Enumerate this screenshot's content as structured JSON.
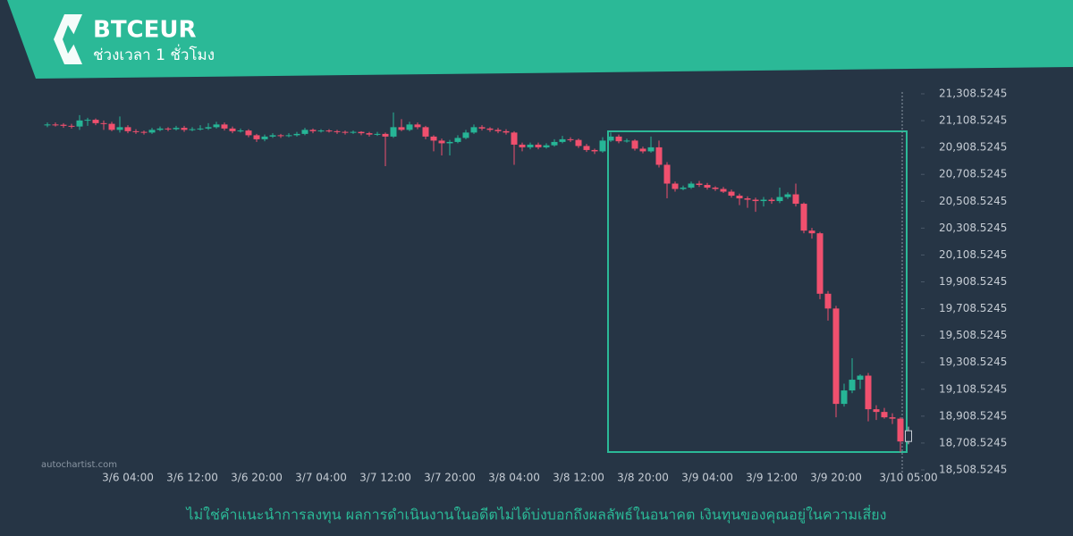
{
  "chart_data": {
    "type": "candlestick",
    "title": "BTCEUR",
    "subtitle": "ช่วงเวลา 1 ชั่วโมง",
    "disclaimer": "ไม่ใช่คำแนะนำการลงทุน ผลการดำเนินงานในอดีตไม่ได้บ่งบอกถึงผลลัพธ์ในอนาคต เงินทุนของคุณอยู่ในความเสี่ยง",
    "watermark": "autochartist.com",
    "up_color": "#26b596",
    "down_color": "#f0506e",
    "x": [
      "3/5 18:00",
      "3/5 19:00",
      "3/5 20:00",
      "3/5 21:00",
      "3/5 22:00",
      "3/5 23:00",
      "3/6 00:00",
      "3/6 01:00",
      "3/6 02:00",
      "3/6 03:00",
      "3/6 04:00",
      "3/6 05:00",
      "3/6 06:00",
      "3/6 07:00",
      "3/6 08:00",
      "3/6 09:00",
      "3/6 10:00",
      "3/6 11:00",
      "3/6 12:00",
      "3/6 13:00",
      "3/6 14:00",
      "3/6 15:00",
      "3/6 16:00",
      "3/6 17:00",
      "3/6 18:00",
      "3/6 19:00",
      "3/6 20:00",
      "3/6 21:00",
      "3/6 22:00",
      "3/6 23:00",
      "3/7 00:00",
      "3/7 01:00",
      "3/7 02:00",
      "3/7 03:00",
      "3/7 04:00",
      "3/7 05:00",
      "3/7 06:00",
      "3/7 07:00",
      "3/7 08:00",
      "3/7 09:00",
      "3/7 10:00",
      "3/7 11:00",
      "3/7 12:00",
      "3/7 13:00",
      "3/7 14:00",
      "3/7 15:00",
      "3/7 16:00",
      "3/7 17:00",
      "3/7 18:00",
      "3/7 19:00",
      "3/7 20:00",
      "3/7 21:00",
      "3/7 22:00",
      "3/7 23:00",
      "3/8 00:00",
      "3/8 01:00",
      "3/8 02:00",
      "3/8 03:00",
      "3/8 04:00",
      "3/8 05:00",
      "3/8 06:00",
      "3/8 07:00",
      "3/8 08:00",
      "3/8 09:00",
      "3/8 10:00",
      "3/8 11:00",
      "3/8 12:00",
      "3/8 13:00",
      "3/8 14:00",
      "3/8 15:00",
      "3/8 16:00",
      "3/8 17:00",
      "3/8 18:00",
      "3/8 19:00",
      "3/8 20:00",
      "3/8 21:00",
      "3/8 22:00",
      "3/8 23:00",
      "3/9 00:00",
      "3/9 01:00",
      "3/9 02:00",
      "3/9 03:00",
      "3/9 04:00",
      "3/9 05:00",
      "3/9 06:00",
      "3/9 07:00",
      "3/9 08:00",
      "3/9 09:00",
      "3/9 10:00",
      "3/9 11:00",
      "3/9 12:00",
      "3/9 13:00",
      "3/9 14:00",
      "3/9 15:00",
      "3/9 16:00",
      "3/9 17:00",
      "3/9 18:00",
      "3/9 19:00",
      "3/9 20:00",
      "3/9 21:00",
      "3/9 22:00",
      "3/9 23:00",
      "3/10 00:00",
      "3/10 01:00",
      "3/10 02:00",
      "3/10 03:00",
      "3/10 04:00",
      "3/10 05:00"
    ],
    "candles": [
      [
        21075,
        21095,
        21060,
        21080
      ],
      [
        21080,
        21095,
        21065,
        21078
      ],
      [
        21078,
        21090,
        21055,
        21070
      ],
      [
        21070,
        21085,
        21050,
        21065
      ],
      [
        21065,
        21150,
        21040,
        21110
      ],
      [
        21110,
        21130,
        21070,
        21115
      ],
      [
        21115,
        21125,
        21075,
        21090
      ],
      [
        21090,
        21110,
        21040,
        21085
      ],
      [
        21085,
        21100,
        21030,
        21040
      ],
      [
        21040,
        21140,
        21020,
        21060
      ],
      [
        21060,
        21075,
        21015,
        21030
      ],
      [
        21030,
        21045,
        21010,
        21025
      ],
      [
        21025,
        21035,
        21005,
        21020
      ],
      [
        21020,
        21055,
        21010,
        21040
      ],
      [
        21040,
        21065,
        21030,
        21050
      ],
      [
        21050,
        21060,
        21030,
        21045
      ],
      [
        21045,
        21070,
        21035,
        21055
      ],
      [
        21055,
        21070,
        21025,
        21040
      ],
      [
        21040,
        21060,
        21030,
        21045
      ],
      [
        21045,
        21075,
        21035,
        21050
      ],
      [
        21050,
        21090,
        21040,
        21060
      ],
      [
        21060,
        21100,
        21050,
        21080
      ],
      [
        21080,
        21095,
        21035,
        21050
      ],
      [
        21050,
        21065,
        21015,
        21030
      ],
      [
        21030,
        21050,
        21020,
        21035
      ],
      [
        21035,
        21045,
        20985,
        21000
      ],
      [
        21000,
        21010,
        20950,
        20970
      ],
      [
        20970,
        21005,
        20955,
        20990
      ],
      [
        20990,
        21015,
        20980,
        21000
      ],
      [
        21000,
        21010,
        20980,
        20995
      ],
      [
        20995,
        21015,
        20985,
        21000
      ],
      [
        21000,
        21025,
        20990,
        21010
      ],
      [
        21010,
        21055,
        21000,
        21040
      ],
      [
        21040,
        21050,
        21015,
        21030
      ],
      [
        21030,
        21045,
        21020,
        21035
      ],
      [
        21035,
        21045,
        21020,
        21030
      ],
      [
        21030,
        21040,
        21010,
        21025
      ],
      [
        21025,
        21035,
        21005,
        21020
      ],
      [
        21020,
        21035,
        21010,
        21025
      ],
      [
        21025,
        21030,
        21000,
        21015
      ],
      [
        21015,
        21025,
        20990,
        21005
      ],
      [
        21005,
        21025,
        20995,
        21010
      ],
      [
        21010,
        21020,
        20770,
        20990
      ],
      [
        20990,
        21170,
        20980,
        21060
      ],
      [
        21060,
        21120,
        21030,
        21040
      ],
      [
        21040,
        21100,
        21030,
        21080
      ],
      [
        21080,
        21095,
        21045,
        21060
      ],
      [
        21060,
        21070,
        20970,
        20990
      ],
      [
        20990,
        21000,
        20880,
        20960
      ],
      [
        20960,
        20975,
        20850,
        20940
      ],
      [
        20940,
        20965,
        20850,
        20950
      ],
      [
        20950,
        21000,
        20940,
        20980
      ],
      [
        20980,
        21040,
        20970,
        21020
      ],
      [
        21020,
        21080,
        21010,
        21060
      ],
      [
        21060,
        21075,
        21035,
        21050
      ],
      [
        21050,
        21060,
        21025,
        21040
      ],
      [
        21040,
        21055,
        21015,
        21030
      ],
      [
        21030,
        21045,
        21005,
        21020
      ],
      [
        21020,
        21030,
        20780,
        20930
      ],
      [
        20930,
        20945,
        20880,
        20910
      ],
      [
        20910,
        20945,
        20895,
        20930
      ],
      [
        20930,
        20945,
        20895,
        20910
      ],
      [
        20910,
        20940,
        20900,
        20925
      ],
      [
        20925,
        20970,
        20915,
        20950
      ],
      [
        20950,
        20995,
        20940,
        20970
      ],
      [
        20970,
        20985,
        20950,
        20965
      ],
      [
        20965,
        20975,
        20905,
        20920
      ],
      [
        20920,
        20935,
        20875,
        20890
      ],
      [
        20890,
        20900,
        20860,
        20880
      ],
      [
        20880,
        20985,
        20870,
        20960
      ],
      [
        20960,
        21020,
        20950,
        20990
      ],
      [
        20990,
        21005,
        20940,
        20955
      ],
      [
        20955,
        20975,
        20945,
        20960
      ],
      [
        20960,
        20970,
        20885,
        20900
      ],
      [
        20900,
        20915,
        20865,
        20880
      ],
      [
        20880,
        20990,
        20870,
        20910
      ],
      [
        20910,
        20960,
        20760,
        20780
      ],
      [
        20780,
        20800,
        20530,
        20640
      ],
      [
        20640,
        20655,
        20580,
        20600
      ],
      [
        20600,
        20625,
        20590,
        20610
      ],
      [
        20610,
        20655,
        20600,
        20640
      ],
      [
        20640,
        20660,
        20615,
        20630
      ],
      [
        20630,
        20645,
        20595,
        20610
      ],
      [
        20610,
        20620,
        20585,
        20600
      ],
      [
        20600,
        20615,
        20570,
        20580
      ],
      [
        20580,
        20595,
        20535,
        20550
      ],
      [
        20550,
        20565,
        20480,
        20530
      ],
      [
        20530,
        20545,
        20460,
        20520
      ],
      [
        20520,
        20535,
        20430,
        20510
      ],
      [
        20510,
        20540,
        20470,
        20520
      ],
      [
        20520,
        20535,
        20490,
        20510
      ],
      [
        20510,
        20610,
        20495,
        20540
      ],
      [
        20540,
        20575,
        20525,
        20560
      ],
      [
        20560,
        20640,
        20470,
        20490
      ],
      [
        20490,
        20500,
        20270,
        20290
      ],
      [
        20290,
        20310,
        20230,
        20270
      ],
      [
        20270,
        20280,
        19780,
        19820
      ],
      [
        19820,
        19840,
        19620,
        19710
      ],
      [
        19710,
        19730,
        18900,
        19000
      ],
      [
        19000,
        19150,
        18980,
        19100
      ],
      [
        19100,
        19340,
        19080,
        19180
      ],
      [
        19180,
        19220,
        19110,
        19210
      ],
      [
        19210,
        19230,
        18870,
        18960
      ],
      [
        18960,
        18990,
        18880,
        18940
      ],
      [
        18940,
        18970,
        18890,
        18900
      ],
      [
        18900,
        18930,
        18850,
        18890
      ],
      [
        18890,
        18900,
        18640,
        18720
      ],
      [
        18720,
        18830,
        18700,
        18800
      ]
    ],
    "ylim": [
      18481.9,
      21335.1
    ],
    "yticks": [
      {
        "value": 21308.5245,
        "label": "21,308.5245"
      },
      {
        "value": 21108.5245,
        "label": "21,108.5245"
      },
      {
        "value": 20908.5245,
        "label": "20,908.5245"
      },
      {
        "value": 20708.5245,
        "label": "20,708.5245"
      },
      {
        "value": 20508.5245,
        "label": "20,508.5245"
      },
      {
        "value": 20308.5245,
        "label": "20,308.5245"
      },
      {
        "value": 20108.5245,
        "label": "20,108.5245"
      },
      {
        "value": 19908.5245,
        "label": "19,908.5245"
      },
      {
        "value": 19708.5245,
        "label": "19,708.5245"
      },
      {
        "value": 19508.5245,
        "label": "19,508.5245"
      },
      {
        "value": 19308.5245,
        "label": "19,308.5245"
      },
      {
        "value": 19108.5245,
        "label": "19,108.5245"
      },
      {
        "value": 18908.5245,
        "label": "18,908.5245"
      },
      {
        "value": 18708.5245,
        "label": "18,708.5245"
      },
      {
        "value": 18508.5245,
        "label": "18,508.5245"
      }
    ],
    "xticks": [
      "3/6 04:00",
      "3/6 12:00",
      "3/6 20:00",
      "3/7 04:00",
      "3/7 12:00",
      "3/7 20:00",
      "3/8 04:00",
      "3/8 12:00",
      "3/8 20:00",
      "3/9 04:00",
      "3/9 12:00",
      "3/9 20:00",
      "3/10 05:00"
    ]
  }
}
